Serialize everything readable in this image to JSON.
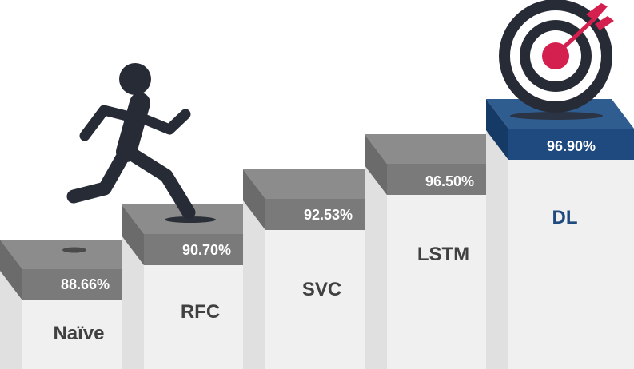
{
  "steps": [
    {
      "label": "Naïve",
      "value": "88.66%",
      "highlight": false
    },
    {
      "label": "RFC",
      "value": "90.70%",
      "highlight": false
    },
    {
      "label": "SVC",
      "value": "92.53%",
      "highlight": false
    },
    {
      "label": "LSTM",
      "value": "96.50%",
      "highlight": false
    },
    {
      "label": "DL",
      "value": "96.90%",
      "highlight": true
    }
  ],
  "icons": {
    "runner": "running-person-icon",
    "target": "target-with-arrow-icon"
  },
  "colors": {
    "step_front": "#f0f0f0",
    "step_side": "#e0e0e0",
    "slab_top": "#8c8c8c",
    "slab_front": "#7a7a7a",
    "slab_side": "#6b6b6b",
    "highlight_top": "#2f5d8f",
    "highlight_front": "#1f4a80",
    "highlight_side": "#163a66",
    "label_text": "#404040",
    "highlight_label_text": "#1f4a80",
    "value_text": "#ffffff",
    "figure": "#262b36",
    "target_accent": "#d3204f"
  }
}
